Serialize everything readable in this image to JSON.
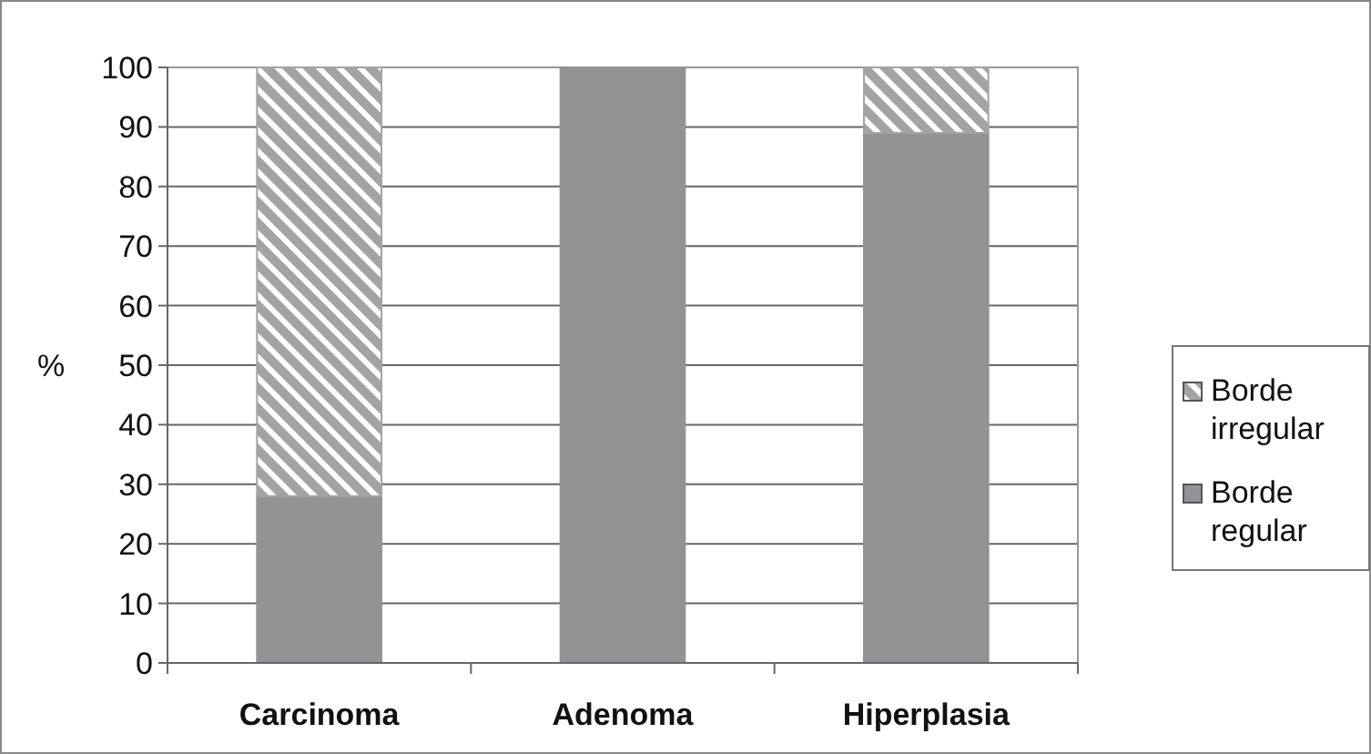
{
  "chart_data": {
    "type": "bar",
    "ylabel": "%",
    "categories": [
      "Carcinoma",
      "Adenoma",
      "Hiperplasia"
    ],
    "series": [
      {
        "name": "Borde regular",
        "color": "#939396",
        "values": [
          28,
          100,
          89
        ]
      },
      {
        "name": "Borde irregular",
        "color": "#a3a3a6",
        "values": [
          72,
          0,
          11
        ]
      }
    ],
    "stacked": true,
    "ylim": [
      0,
      100
    ],
    "yticks": [
      0,
      10,
      20,
      30,
      40,
      50,
      60,
      70,
      80,
      90,
      100
    ],
    "grid": "y",
    "legend": "right"
  }
}
